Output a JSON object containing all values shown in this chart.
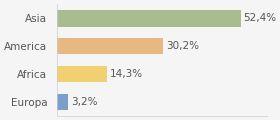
{
  "categories": [
    "Europa",
    "Africa",
    "America",
    "Asia"
  ],
  "values": [
    52.4,
    30.2,
    14.3,
    3.2
  ],
  "labels": [
    "52,4%",
    "30,2%",
    "14,3%",
    "3,2%"
  ],
  "bar_colors": [
    "#a8bc8f",
    "#e8b882",
    "#f0d070",
    "#7b9fc8"
  ],
  "background_color": "#f5f5f5",
  "xlim": [
    0,
    60
  ],
  "label_fontsize": 7.5,
  "cat_fontsize": 7.5
}
